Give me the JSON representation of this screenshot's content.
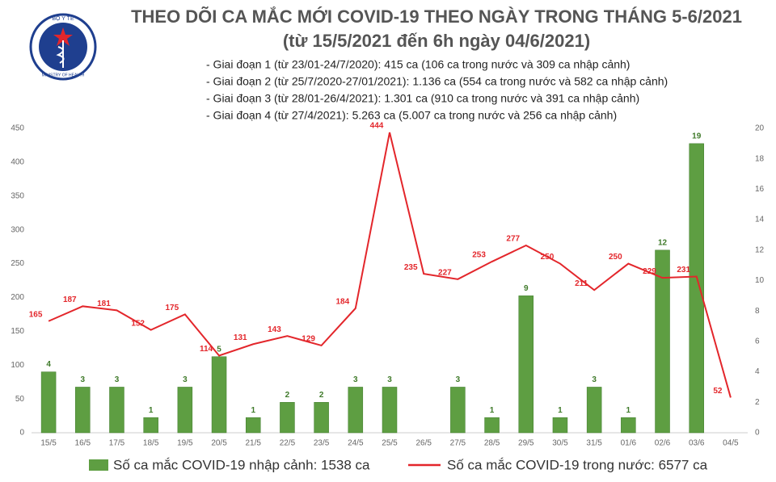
{
  "logo": {
    "top": "BỘ Y TẾ",
    "bottom": "MINISTRY OF HEALTH"
  },
  "chart_data": {
    "type": "bar-line",
    "title": "THEO DÕI CA MẮC MỚI COVID-19 THEO NGÀY TRONG THÁNG 5-6/2021",
    "subtitle": "(từ 15/5/2021 đến 6h ngày 04/6/2021)",
    "annotations": [
      "- Giai đoạn 1 (từ 23/01-24/7/2020): 415 ca (106 ca trong nước và 309 ca nhập cảnh)",
      "- Giai đoạn 2 (từ 25/7/2020-27/01/2021): 1.136 ca (554 ca trong nước và 582 ca nhập cảnh)",
      "- Giai đoạn 3 (từ 28/01-26/4/2021): 1.301 ca (910 ca trong nước và 391 ca nhập cảnh)",
      "- Giai đoạn 4 (từ 27/4/2021): 5.263 ca (5.007 ca trong nước và 256 ca nhập cảnh)"
    ],
    "categories": [
      "15/5",
      "16/5",
      "17/5",
      "18/5",
      "19/5",
      "20/5",
      "21/5",
      "22/5",
      "23/5",
      "24/5",
      "25/5",
      "26/5",
      "27/5",
      "28/5",
      "29/5",
      "30/5",
      "31/5",
      "01/6",
      "02/6",
      "03/6",
      "04/5"
    ],
    "series": [
      {
        "name": "Số ca mắc COVID-19 nhập cảnh: 1538 ca",
        "color": "#5e9e42",
        "kind": "bar",
        "axis": "y2",
        "values": [
          4,
          3,
          3,
          1,
          3,
          5,
          1,
          2,
          2,
          3,
          3,
          null,
          3,
          1,
          9,
          1,
          3,
          1,
          12,
          19,
          null
        ]
      },
      {
        "name": "Số ca mắc COVID-19 trong nước: 6577 ca",
        "color": "#e3262b",
        "kind": "line",
        "axis": "y",
        "values": [
          165,
          187,
          181,
          152,
          175,
          114,
          131,
          143,
          129,
          184,
          444,
          235,
          227,
          253,
          277,
          250,
          211,
          250,
          229,
          231,
          52
        ]
      }
    ],
    "ylim": [
      0,
      450
    ],
    "yticks": [
      0,
      50,
      100,
      150,
      200,
      250,
      300,
      350,
      400,
      450
    ],
    "y2lim": [
      0,
      20
    ],
    "y2ticks": [
      0,
      2,
      4,
      6,
      8,
      10,
      12,
      14,
      16,
      18,
      20
    ]
  }
}
